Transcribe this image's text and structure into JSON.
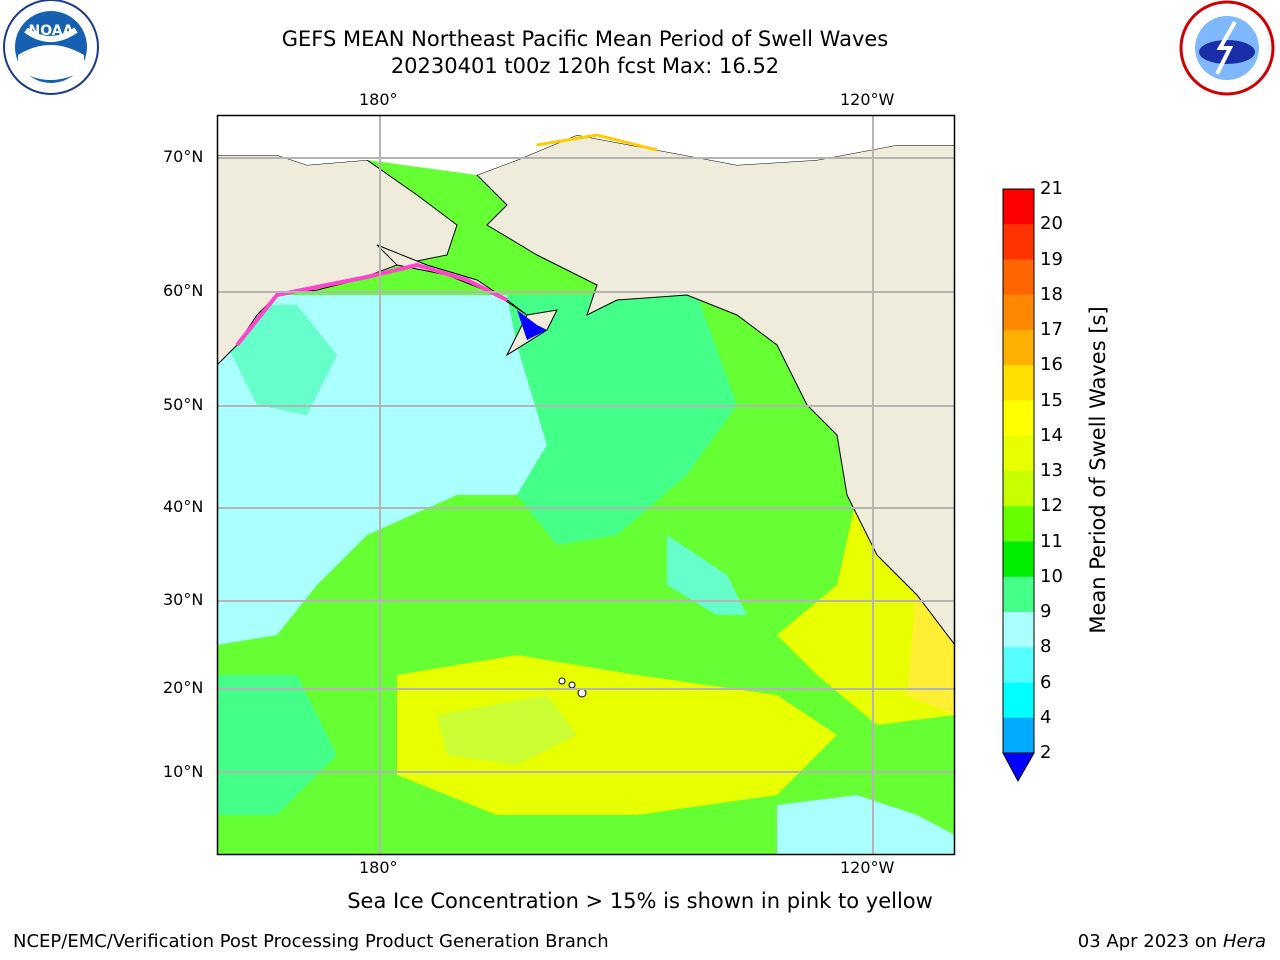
{
  "title_line1": "GEFS MEAN Northeast Pacific Mean Period of Swell Waves",
  "title_line2": "20230401 t00z 120h fcst   Max: 16.52",
  "lon_labels": [
    "180°",
    "120°W"
  ],
  "lat_labels": [
    "70°N",
    "60°N",
    "50°N",
    "40°N",
    "30°N",
    "20°N",
    "10°N"
  ],
  "colorbar": {
    "title": "Mean Period of Swell Waves [s]",
    "ticks": [
      "21",
      "20",
      "19",
      "18",
      "17",
      "16",
      "15",
      "14",
      "13",
      "12",
      "11",
      "10",
      "9",
      "8",
      "6",
      "4",
      "2"
    ],
    "colors": [
      "#ff0000",
      "#ff3300",
      "#ff6600",
      "#ff8800",
      "#ffb000",
      "#ffe000",
      "#ffff00",
      "#e8ff00",
      "#c8ff00",
      "#66ff00",
      "#00ee00",
      "#44ff88",
      "#aaffff",
      "#55ffff",
      "#00ffff",
      "#00aaff",
      "#0000ff"
    ]
  },
  "caption": "Sea Ice Concentration > 15% is shown in pink to yellow",
  "footer_left": "NCEP/EMC/Verification Post Processing Product Generation Branch",
  "footer_right_date": "03 Apr 2023 on",
  "footer_right_host": "Hera",
  "logos": {
    "left": "noaa-logo",
    "right": "nws-logo"
  },
  "colors": {
    "land": "#efecdc",
    "grid": "#b4b4b4"
  }
}
